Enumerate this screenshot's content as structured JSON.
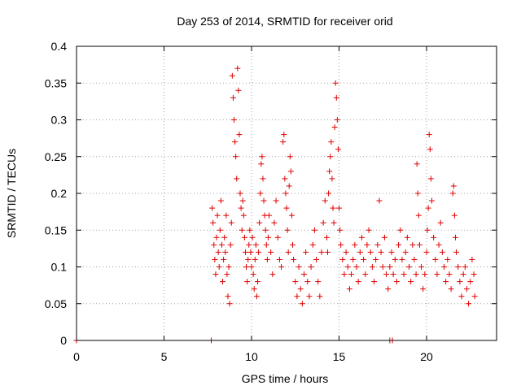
{
  "chart_data": {
    "type": "scatter",
    "title": "Day 253 of 2014, SRMTID for receiver orid",
    "xlabel": "GPS time / hours",
    "ylabel": "SRMTID / TECUs",
    "xlim": [
      0,
      24
    ],
    "ylim": [
      0,
      0.4
    ],
    "xticks": [
      "0",
      "5",
      "10",
      "15",
      "20"
    ],
    "yticks": [
      "0",
      "0.05",
      "0.1",
      "0.15",
      "0.2",
      "0.25",
      "0.3",
      "0.35",
      "0.4"
    ],
    "grid": true,
    "marker": "plus",
    "color": "#e00000",
    "series": [
      {
        "points": [
          [
            0.0,
            0.0
          ],
          [
            7.7,
            0.0
          ],
          [
            17.9,
            0.0
          ],
          [
            18.05,
            0.0
          ],
          [
            7.75,
            0.18
          ],
          [
            7.8,
            0.16
          ],
          [
            7.85,
            0.13
          ],
          [
            7.9,
            0.11
          ],
          [
            7.95,
            0.09
          ],
          [
            8.0,
            0.14
          ],
          [
            8.05,
            0.17
          ],
          [
            8.1,
            0.12
          ],
          [
            8.15,
            0.1
          ],
          [
            8.2,
            0.15
          ],
          [
            8.25,
            0.19
          ],
          [
            8.3,
            0.13
          ],
          [
            8.35,
            0.08
          ],
          [
            8.4,
            0.11
          ],
          [
            8.45,
            0.14
          ],
          [
            8.5,
            0.12
          ],
          [
            8.55,
            0.17
          ],
          [
            8.6,
            0.09
          ],
          [
            8.65,
            0.06
          ],
          [
            8.7,
            0.1
          ],
          [
            8.75,
            0.05
          ],
          [
            8.8,
            0.13
          ],
          [
            8.85,
            0.16
          ],
          [
            8.9,
            0.36
          ],
          [
            8.95,
            0.33
          ],
          [
            9.0,
            0.3
          ],
          [
            9.05,
            0.27
          ],
          [
            9.1,
            0.25
          ],
          [
            9.15,
            0.22
          ],
          [
            9.2,
            0.37
          ],
          [
            9.25,
            0.34
          ],
          [
            9.3,
            0.28
          ],
          [
            9.35,
            0.2
          ],
          [
            9.4,
            0.18
          ],
          [
            9.45,
            0.15
          ],
          [
            9.5,
            0.19
          ],
          [
            9.55,
            0.17
          ],
          [
            9.6,
            0.14
          ],
          [
            9.65,
            0.12
          ],
          [
            9.7,
            0.1
          ],
          [
            9.75,
            0.08
          ],
          [
            9.8,
            0.11
          ],
          [
            9.85,
            0.13
          ],
          [
            9.9,
            0.15
          ],
          [
            9.95,
            0.12
          ],
          [
            10.0,
            0.1
          ],
          [
            10.05,
            0.14
          ],
          [
            10.1,
            0.09
          ],
          [
            10.15,
            0.07
          ],
          [
            10.2,
            0.11
          ],
          [
            10.25,
            0.13
          ],
          [
            10.3,
            0.06
          ],
          [
            10.35,
            0.08
          ],
          [
            10.4,
            0.12
          ],
          [
            10.45,
            0.16
          ],
          [
            10.5,
            0.2
          ],
          [
            10.55,
            0.24
          ],
          [
            10.6,
            0.25
          ],
          [
            10.65,
            0.22
          ],
          [
            10.7,
            0.19
          ],
          [
            10.75,
            0.17
          ],
          [
            10.8,
            0.15
          ],
          [
            10.85,
            0.13
          ],
          [
            10.9,
            0.11
          ],
          [
            10.95,
            0.14
          ],
          [
            11.0,
            0.17
          ],
          [
            11.1,
            0.12
          ],
          [
            11.2,
            0.09
          ],
          [
            11.3,
            0.16
          ],
          [
            11.4,
            0.19
          ],
          [
            11.5,
            0.14
          ],
          [
            11.6,
            0.11
          ],
          [
            11.7,
            0.1
          ],
          [
            11.8,
            0.27
          ],
          [
            11.85,
            0.28
          ],
          [
            11.9,
            0.22
          ],
          [
            11.95,
            0.2
          ],
          [
            12.0,
            0.18
          ],
          [
            12.05,
            0.15
          ],
          [
            12.1,
            0.12
          ],
          [
            12.15,
            0.21
          ],
          [
            12.2,
            0.25
          ],
          [
            12.25,
            0.23
          ],
          [
            12.3,
            0.17
          ],
          [
            12.35,
            0.13
          ],
          [
            12.4,
            0.11
          ],
          [
            12.5,
            0.08
          ],
          [
            12.6,
            0.06
          ],
          [
            12.7,
            0.1
          ],
          [
            12.8,
            0.07
          ],
          [
            12.9,
            0.05
          ],
          [
            13.0,
            0.09
          ],
          [
            13.1,
            0.12
          ],
          [
            13.2,
            0.08
          ],
          [
            13.3,
            0.06
          ],
          [
            13.4,
            0.1
          ],
          [
            13.5,
            0.13
          ],
          [
            13.6,
            0.15
          ],
          [
            13.7,
            0.11
          ],
          [
            13.8,
            0.08
          ],
          [
            13.9,
            0.06
          ],
          [
            14.0,
            0.12
          ],
          [
            14.1,
            0.16
          ],
          [
            14.2,
            0.19
          ],
          [
            14.3,
            0.14
          ],
          [
            14.35,
            0.12
          ],
          [
            14.4,
            0.2
          ],
          [
            14.45,
            0.23
          ],
          [
            14.5,
            0.25
          ],
          [
            14.55,
            0.27
          ],
          [
            14.6,
            0.22
          ],
          [
            14.65,
            0.18
          ],
          [
            14.7,
            0.16
          ],
          [
            14.75,
            0.29
          ],
          [
            14.8,
            0.35
          ],
          [
            14.85,
            0.33
          ],
          [
            14.9,
            0.3
          ],
          [
            14.95,
            0.26
          ],
          [
            15.0,
            0.18
          ],
          [
            15.05,
            0.15
          ],
          [
            15.1,
            0.13
          ],
          [
            15.2,
            0.11
          ],
          [
            15.3,
            0.09
          ],
          [
            15.4,
            0.12
          ],
          [
            15.5,
            0.1
          ],
          [
            15.6,
            0.07
          ],
          [
            15.7,
            0.09
          ],
          [
            15.8,
            0.11
          ],
          [
            15.9,
            0.13
          ],
          [
            16.0,
            0.1
          ],
          [
            16.1,
            0.08
          ],
          [
            16.2,
            0.12
          ],
          [
            16.3,
            0.14
          ],
          [
            16.4,
            0.11
          ],
          [
            16.5,
            0.09
          ],
          [
            16.6,
            0.13
          ],
          [
            16.7,
            0.15
          ],
          [
            16.8,
            0.12
          ],
          [
            16.9,
            0.1
          ],
          [
            17.0,
            0.08
          ],
          [
            17.1,
            0.11
          ],
          [
            17.2,
            0.13
          ],
          [
            17.3,
            0.19
          ],
          [
            17.4,
            0.12
          ],
          [
            17.5,
            0.1
          ],
          [
            17.6,
            0.14
          ],
          [
            17.7,
            0.09
          ],
          [
            17.8,
            0.07
          ],
          [
            17.9,
            0.1
          ],
          [
            18.0,
            0.12
          ],
          [
            18.1,
            0.09
          ],
          [
            18.2,
            0.11
          ],
          [
            18.3,
            0.08
          ],
          [
            18.4,
            0.13
          ],
          [
            18.5,
            0.15
          ],
          [
            18.6,
            0.11
          ],
          [
            18.7,
            0.09
          ],
          [
            18.8,
            0.12
          ],
          [
            18.9,
            0.14
          ],
          [
            19.0,
            0.1
          ],
          [
            19.1,
            0.08
          ],
          [
            19.2,
            0.13
          ],
          [
            19.3,
            0.11
          ],
          [
            19.4,
            0.09
          ],
          [
            19.45,
            0.24
          ],
          [
            19.5,
            0.2
          ],
          [
            19.55,
            0.17
          ],
          [
            19.6,
            0.13
          ],
          [
            19.7,
            0.1
          ],
          [
            19.8,
            0.07
          ],
          [
            19.9,
            0.09
          ],
          [
            20.0,
            0.12
          ],
          [
            20.05,
            0.15
          ],
          [
            20.1,
            0.18
          ],
          [
            20.15,
            0.28
          ],
          [
            20.2,
            0.26
          ],
          [
            20.25,
            0.22
          ],
          [
            20.3,
            0.19
          ],
          [
            20.4,
            0.14
          ],
          [
            20.5,
            0.11
          ],
          [
            20.6,
            0.09
          ],
          [
            20.7,
            0.13
          ],
          [
            20.8,
            0.16
          ],
          [
            20.9,
            0.12
          ],
          [
            21.0,
            0.1
          ],
          [
            21.1,
            0.08
          ],
          [
            21.2,
            0.11
          ],
          [
            21.3,
            0.09
          ],
          [
            21.4,
            0.07
          ],
          [
            21.5,
            0.2
          ],
          [
            21.55,
            0.21
          ],
          [
            21.6,
            0.17
          ],
          [
            21.65,
            0.14
          ],
          [
            21.7,
            0.12
          ],
          [
            21.8,
            0.1
          ],
          [
            21.9,
            0.08
          ],
          [
            22.0,
            0.06
          ],
          [
            22.1,
            0.09
          ],
          [
            22.2,
            0.1
          ],
          [
            22.3,
            0.07
          ],
          [
            22.4,
            0.05
          ],
          [
            22.5,
            0.08
          ],
          [
            22.6,
            0.11
          ],
          [
            22.7,
            0.09
          ],
          [
            22.75,
            0.06
          ]
        ]
      }
    ]
  }
}
